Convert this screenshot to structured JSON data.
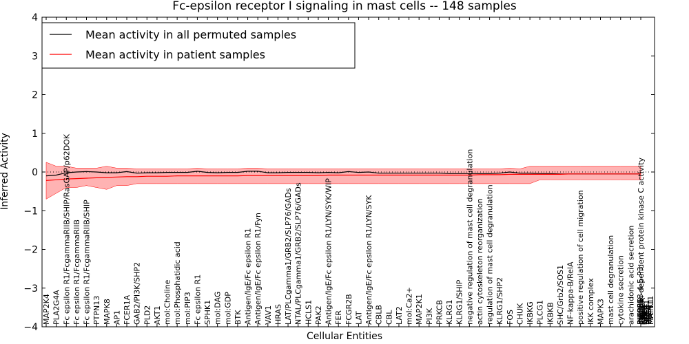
{
  "chart_data": {
    "type": "line",
    "title": "Fc-epsilon receptor I signaling in mast cells -- 148 samples",
    "xlabel": "Cellular Entities",
    "ylabel": "Inferred Activity",
    "ylim": [
      -4,
      4
    ],
    "yticks": [
      "4",
      "3",
      "2",
      "1",
      "0",
      "−1",
      "−2",
      "−3",
      "−4"
    ],
    "grid": false,
    "legend_position": "top-left",
    "zero_line": {
      "style": "dotted",
      "y": 0
    },
    "categories": [
      "MAP2K4",
      "PLA2G4A",
      "Fc epsilon R1/FcgammaRIIB/SHIP/RasGAP/p62DOK",
      "Fc epsilon R1/FcgammaRIIB",
      "Fc epsilon R1/FcgammaRIIB/SHIP",
      "PTPN13",
      "MAPK8",
      "AP1",
      "FCER1A",
      "GAB2/PI3K/SHP2",
      "PLD2",
      "AKT1",
      "mol:Choline",
      "mol:Phosphatidic acid",
      "mol:PIP3",
      "Fc epsilon R1",
      "SPHK1",
      "mol:DAG",
      "mol:GDP",
      "BTK",
      "Antigen/IgE/Fc epsilon R1",
      "Antigen/IgE/Fc epsilon R1/Fyn",
      "VAV1",
      "HRAS",
      "LAT/PLCgamma1/GRB2/SLP76/GADs",
      "NTAL/PLCgamma1/GRB2/SLP76/GADs",
      "HCLS1",
      "PAK2",
      "Antigen/IgE/Fc epsilon R1/LYN/SYK/WIP",
      "FER",
      "FCGR2B",
      "LAT",
      "Antigen/IgE/Fc epsilon R1/LYN/SYK",
      "CBLB",
      "CBL",
      "LAT2",
      "mol:Ca2+",
      "MAP2K1",
      "PI3K",
      "PRKCB",
      "KLRG1",
      "KLRG1/SHIP",
      "negative regulation of mast cell degranulation",
      "actin cytoskeleton reorganization",
      "regulation of mast cell degranulation",
      "KLRG1/SHP2",
      "FOS",
      "CHUK",
      "IKBKG",
      "PLCG1",
      "IKBKB",
      "SHC/Grb2/SOS1",
      "NF-kappa-B/RelA",
      "positive regulation of cell migration",
      "IKK complex",
      "MAPK3",
      "mast cell degranulation",
      "cytokine secretion",
      "arachidonic acid secretion",
      "calcium-dependent protein kinase C activity"
    ],
    "extra_overlapping_labels": [
      "mol:PI-3-4-5-P3",
      "RAF1",
      "GRB2",
      "SOS1",
      "RAC1",
      "MAPK1",
      "PIK3R1",
      "PIK3CA",
      "SHC1",
      "NFKB1",
      "RELA",
      "PTPN11",
      "INPP5D",
      "FYN",
      "SYK",
      "LYN"
    ],
    "series": [
      {
        "name": "Mean activity in all permuted samples",
        "color": "#000000",
        "values": [
          -0.1,
          -0.08,
          -0.02,
          0.0,
          0.01,
          0.0,
          -0.02,
          -0.02,
          0.01,
          -0.03,
          -0.02,
          -0.02,
          -0.01,
          -0.01,
          -0.01,
          0.02,
          -0.01,
          -0.02,
          -0.01,
          -0.01,
          0.02,
          0.02,
          -0.02,
          -0.02,
          -0.01,
          -0.01,
          -0.01,
          -0.02,
          -0.01,
          -0.02,
          0.01,
          -0.01,
          0.0,
          -0.03,
          -0.03,
          -0.03,
          -0.03,
          -0.03,
          -0.03,
          -0.03,
          -0.04,
          -0.04,
          -0.04,
          -0.04,
          -0.04,
          -0.03,
          0.0,
          -0.03,
          -0.03,
          -0.04,
          -0.04,
          -0.05,
          -0.05,
          -0.05,
          -0.05,
          -0.05,
          -0.05,
          -0.05,
          -0.05,
          -0.05
        ],
        "band": {
          "lower": [
            -0.7,
            -0.55,
            -0.4,
            -0.4,
            -0.35,
            -0.4,
            -0.45,
            -0.35,
            -0.35,
            -0.3,
            -0.3,
            -0.3,
            -0.3,
            -0.3,
            -0.3,
            -0.3,
            -0.3,
            -0.3,
            -0.3,
            -0.3,
            -0.3,
            -0.3,
            -0.3,
            -0.3,
            -0.3,
            -0.3,
            -0.3,
            -0.3,
            -0.3,
            -0.3,
            -0.3,
            -0.3,
            -0.3,
            -0.3,
            -0.3,
            -0.3,
            -0.3,
            -0.3,
            -0.3,
            -0.3,
            -0.3,
            -0.3,
            -0.3,
            -0.3,
            -0.3,
            -0.3,
            -0.3,
            -0.3,
            -0.3,
            -0.2,
            -0.2,
            -0.2,
            -0.2,
            -0.2,
            -0.2,
            -0.2,
            -0.2,
            -0.2,
            -0.2,
            -0.2
          ],
          "upper": [
            0.25,
            0.15,
            0.15,
            0.1,
            0.1,
            0.1,
            0.15,
            0.1,
            0.1,
            0.08,
            0.08,
            0.08,
            0.08,
            0.08,
            0.08,
            0.1,
            0.08,
            0.08,
            0.08,
            0.08,
            0.1,
            0.1,
            0.08,
            0.08,
            0.08,
            0.08,
            0.08,
            0.08,
            0.08,
            0.08,
            0.08,
            0.08,
            0.08,
            0.08,
            0.08,
            0.08,
            0.08,
            0.08,
            0.08,
            0.08,
            0.08,
            0.08,
            0.08,
            0.08,
            0.08,
            0.08,
            0.1,
            0.08,
            0.15,
            0.15,
            0.15,
            0.15,
            0.15,
            0.15,
            0.15,
            0.15,
            0.15,
            0.15,
            0.15,
            0.15
          ]
        }
      },
      {
        "name": "Mean activity in patient samples",
        "color": "#ff0000",
        "values": [
          -0.22,
          -0.2,
          -0.18,
          -0.17,
          -0.16,
          -0.15,
          -0.14,
          -0.13,
          -0.12,
          -0.12,
          -0.11,
          -0.11,
          -0.11,
          -0.1,
          -0.1,
          -0.1,
          -0.1,
          -0.1,
          -0.1,
          -0.1,
          -0.09,
          -0.09,
          -0.09,
          -0.09,
          -0.09,
          -0.09,
          -0.09,
          -0.09,
          -0.08,
          -0.08,
          -0.08,
          -0.08,
          -0.08,
          -0.08,
          -0.08,
          -0.08,
          -0.08,
          -0.08,
          -0.08,
          -0.08,
          -0.08,
          -0.08,
          -0.08,
          -0.07,
          -0.07,
          -0.07,
          -0.06,
          -0.06,
          -0.06,
          -0.06,
          -0.06,
          -0.06,
          -0.05,
          -0.05,
          -0.05,
          -0.05,
          -0.05,
          -0.05,
          -0.05,
          -0.05
        ]
      }
    ],
    "legend": [
      {
        "label": "Mean activity in all permuted samples",
        "color": "#000000"
      },
      {
        "label": "Mean activity in patient samples",
        "color": "#ff0000"
      }
    ],
    "band_color": "#ff8080"
  }
}
